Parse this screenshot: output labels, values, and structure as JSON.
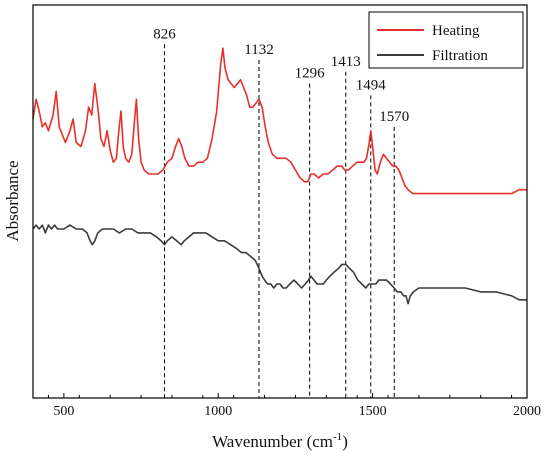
{
  "chart_data": {
    "type": "line",
    "title": "",
    "xlabel": "Wavenumber (cm",
    "xlabel_sup": "-1",
    "xlabel_end": ")",
    "ylabel": "Absorbance",
    "xlim": [
      400,
      2000
    ],
    "ylim": [
      0,
      1
    ],
    "x_ticks": [
      "500",
      "1000",
      "1500",
      "2000"
    ],
    "y_ticks_labeled": false,
    "grid": false,
    "legend_position": "top-right",
    "annotations": [
      {
        "x": 826,
        "label": "826",
        "y_top": 0.9
      },
      {
        "x": 1132,
        "label": "1132",
        "y_top": 0.86
      },
      {
        "x": 1296,
        "label": "1296",
        "y_top": 0.8
      },
      {
        "x": 1413,
        "label": "1413",
        "y_top": 0.83
      },
      {
        "x": 1494,
        "label": "1494",
        "y_top": 0.77
      },
      {
        "x": 1570,
        "label": "1570",
        "y_top": 0.69
      }
    ],
    "series": [
      {
        "name": "Heating",
        "color": "#e8302b",
        "points": [
          [
            400,
            0.71
          ],
          [
            410,
            0.76
          ],
          [
            420,
            0.73
          ],
          [
            430,
            0.69
          ],
          [
            440,
            0.7
          ],
          [
            450,
            0.68
          ],
          [
            465,
            0.72
          ],
          [
            475,
            0.78
          ],
          [
            485,
            0.69
          ],
          [
            495,
            0.67
          ],
          [
            505,
            0.65
          ],
          [
            520,
            0.68
          ],
          [
            530,
            0.71
          ],
          [
            540,
            0.65
          ],
          [
            555,
            0.64
          ],
          [
            570,
            0.68
          ],
          [
            580,
            0.74
          ],
          [
            590,
            0.72
          ],
          [
            600,
            0.8
          ],
          [
            610,
            0.74
          ],
          [
            620,
            0.66
          ],
          [
            630,
            0.64
          ],
          [
            640,
            0.68
          ],
          [
            650,
            0.63
          ],
          [
            660,
            0.6
          ],
          [
            670,
            0.61
          ],
          [
            678,
            0.68
          ],
          [
            685,
            0.73
          ],
          [
            692,
            0.64
          ],
          [
            700,
            0.61
          ],
          [
            710,
            0.6
          ],
          [
            720,
            0.62
          ],
          [
            728,
            0.7
          ],
          [
            735,
            0.76
          ],
          [
            742,
            0.66
          ],
          [
            750,
            0.6
          ],
          [
            760,
            0.58
          ],
          [
            775,
            0.57
          ],
          [
            790,
            0.57
          ],
          [
            805,
            0.57
          ],
          [
            820,
            0.58
          ],
          [
            835,
            0.6
          ],
          [
            850,
            0.61
          ],
          [
            862,
            0.64
          ],
          [
            872,
            0.66
          ],
          [
            882,
            0.64
          ],
          [
            892,
            0.61
          ],
          [
            905,
            0.59
          ],
          [
            920,
            0.59
          ],
          [
            935,
            0.6
          ],
          [
            950,
            0.6
          ],
          [
            965,
            0.61
          ],
          [
            980,
            0.66
          ],
          [
            995,
            0.73
          ],
          [
            1008,
            0.85
          ],
          [
            1015,
            0.89
          ],
          [
            1022,
            0.84
          ],
          [
            1032,
            0.81
          ],
          [
            1042,
            0.8
          ],
          [
            1052,
            0.79
          ],
          [
            1062,
            0.8
          ],
          [
            1072,
            0.81
          ],
          [
            1082,
            0.79
          ],
          [
            1092,
            0.77
          ],
          [
            1102,
            0.74
          ],
          [
            1112,
            0.74
          ],
          [
            1122,
            0.75
          ],
          [
            1132,
            0.76
          ],
          [
            1142,
            0.74
          ],
          [
            1152,
            0.69
          ],
          [
            1162,
            0.65
          ],
          [
            1175,
            0.62
          ],
          [
            1190,
            0.61
          ],
          [
            1205,
            0.61
          ],
          [
            1220,
            0.61
          ],
          [
            1235,
            0.6
          ],
          [
            1250,
            0.58
          ],
          [
            1265,
            0.56
          ],
          [
            1280,
            0.55
          ],
          [
            1290,
            0.55
          ],
          [
            1300,
            0.57
          ],
          [
            1310,
            0.57
          ],
          [
            1325,
            0.56
          ],
          [
            1340,
            0.57
          ],
          [
            1355,
            0.57
          ],
          [
            1370,
            0.58
          ],
          [
            1385,
            0.59
          ],
          [
            1400,
            0.59
          ],
          [
            1410,
            0.58
          ],
          [
            1422,
            0.58
          ],
          [
            1435,
            0.59
          ],
          [
            1450,
            0.6
          ],
          [
            1462,
            0.6
          ],
          [
            1472,
            0.6
          ],
          [
            1480,
            0.61
          ],
          [
            1487,
            0.64
          ],
          [
            1494,
            0.68
          ],
          [
            1500,
            0.64
          ],
          [
            1508,
            0.58
          ],
          [
            1515,
            0.57
          ],
          [
            1525,
            0.6
          ],
          [
            1535,
            0.62
          ],
          [
            1545,
            0.61
          ],
          [
            1555,
            0.6
          ],
          [
            1565,
            0.59
          ],
          [
            1575,
            0.59
          ],
          [
            1585,
            0.58
          ],
          [
            1595,
            0.56
          ],
          [
            1605,
            0.54
          ],
          [
            1615,
            0.53
          ],
          [
            1630,
            0.52
          ],
          [
            1650,
            0.52
          ],
          [
            1700,
            0.52
          ],
          [
            1750,
            0.52
          ],
          [
            1800,
            0.52
          ],
          [
            1850,
            0.52
          ],
          [
            1900,
            0.52
          ],
          [
            1950,
            0.52
          ],
          [
            1975,
            0.53
          ],
          [
            2000,
            0.53
          ]
        ]
      },
      {
        "name": "Filtration",
        "color": "#3c3c3c",
        "points": [
          [
            400,
            0.43
          ],
          [
            410,
            0.44
          ],
          [
            420,
            0.43
          ],
          [
            430,
            0.44
          ],
          [
            440,
            0.42
          ],
          [
            450,
            0.44
          ],
          [
            460,
            0.43
          ],
          [
            470,
            0.44
          ],
          [
            480,
            0.43
          ],
          [
            490,
            0.43
          ],
          [
            500,
            0.43
          ],
          [
            520,
            0.44
          ],
          [
            540,
            0.43
          ],
          [
            560,
            0.43
          ],
          [
            575,
            0.42
          ],
          [
            585,
            0.4
          ],
          [
            592,
            0.39
          ],
          [
            600,
            0.4
          ],
          [
            610,
            0.42
          ],
          [
            625,
            0.43
          ],
          [
            640,
            0.43
          ],
          [
            660,
            0.43
          ],
          [
            680,
            0.42
          ],
          [
            700,
            0.43
          ],
          [
            720,
            0.43
          ],
          [
            740,
            0.42
          ],
          [
            760,
            0.42
          ],
          [
            780,
            0.42
          ],
          [
            800,
            0.41
          ],
          [
            815,
            0.4
          ],
          [
            826,
            0.39
          ],
          [
            835,
            0.4
          ],
          [
            850,
            0.41
          ],
          [
            865,
            0.4
          ],
          [
            880,
            0.39
          ],
          [
            890,
            0.4
          ],
          [
            905,
            0.41
          ],
          [
            920,
            0.42
          ],
          [
            940,
            0.42
          ],
          [
            960,
            0.42
          ],
          [
            980,
            0.41
          ],
          [
            1000,
            0.4
          ],
          [
            1020,
            0.4
          ],
          [
            1040,
            0.39
          ],
          [
            1060,
            0.38
          ],
          [
            1075,
            0.37
          ],
          [
            1090,
            0.37
          ],
          [
            1105,
            0.36
          ],
          [
            1120,
            0.35
          ],
          [
            1132,
            0.33
          ],
          [
            1142,
            0.31
          ],
          [
            1150,
            0.3
          ],
          [
            1160,
            0.29
          ],
          [
            1170,
            0.29
          ],
          [
            1180,
            0.28
          ],
          [
            1190,
            0.29
          ],
          [
            1200,
            0.29
          ],
          [
            1210,
            0.28
          ],
          [
            1220,
            0.28
          ],
          [
            1232,
            0.29
          ],
          [
            1245,
            0.3
          ],
          [
            1258,
            0.29
          ],
          [
            1270,
            0.28
          ],
          [
            1282,
            0.29
          ],
          [
            1292,
            0.3
          ],
          [
            1300,
            0.31
          ],
          [
            1310,
            0.3
          ],
          [
            1320,
            0.29
          ],
          [
            1330,
            0.29
          ],
          [
            1340,
            0.29
          ],
          [
            1350,
            0.3
          ],
          [
            1362,
            0.31
          ],
          [
            1375,
            0.32
          ],
          [
            1390,
            0.33
          ],
          [
            1400,
            0.34
          ],
          [
            1413,
            0.34
          ],
          [
            1425,
            0.33
          ],
          [
            1438,
            0.32
          ],
          [
            1452,
            0.3
          ],
          [
            1465,
            0.29
          ],
          [
            1478,
            0.28
          ],
          [
            1488,
            0.29
          ],
          [
            1500,
            0.29
          ],
          [
            1510,
            0.29
          ],
          [
            1520,
            0.3
          ],
          [
            1532,
            0.3
          ],
          [
            1545,
            0.3
          ],
          [
            1558,
            0.29
          ],
          [
            1570,
            0.28
          ],
          [
            1580,
            0.27
          ],
          [
            1592,
            0.27
          ],
          [
            1600,
            0.26
          ],
          [
            1608,
            0.26
          ],
          [
            1615,
            0.24
          ],
          [
            1622,
            0.26
          ],
          [
            1632,
            0.27
          ],
          [
            1650,
            0.28
          ],
          [
            1700,
            0.28
          ],
          [
            1750,
            0.28
          ],
          [
            1800,
            0.28
          ],
          [
            1850,
            0.27
          ],
          [
            1900,
            0.27
          ],
          [
            1950,
            0.26
          ],
          [
            1975,
            0.25
          ],
          [
            2000,
            0.25
          ]
        ]
      }
    ]
  }
}
